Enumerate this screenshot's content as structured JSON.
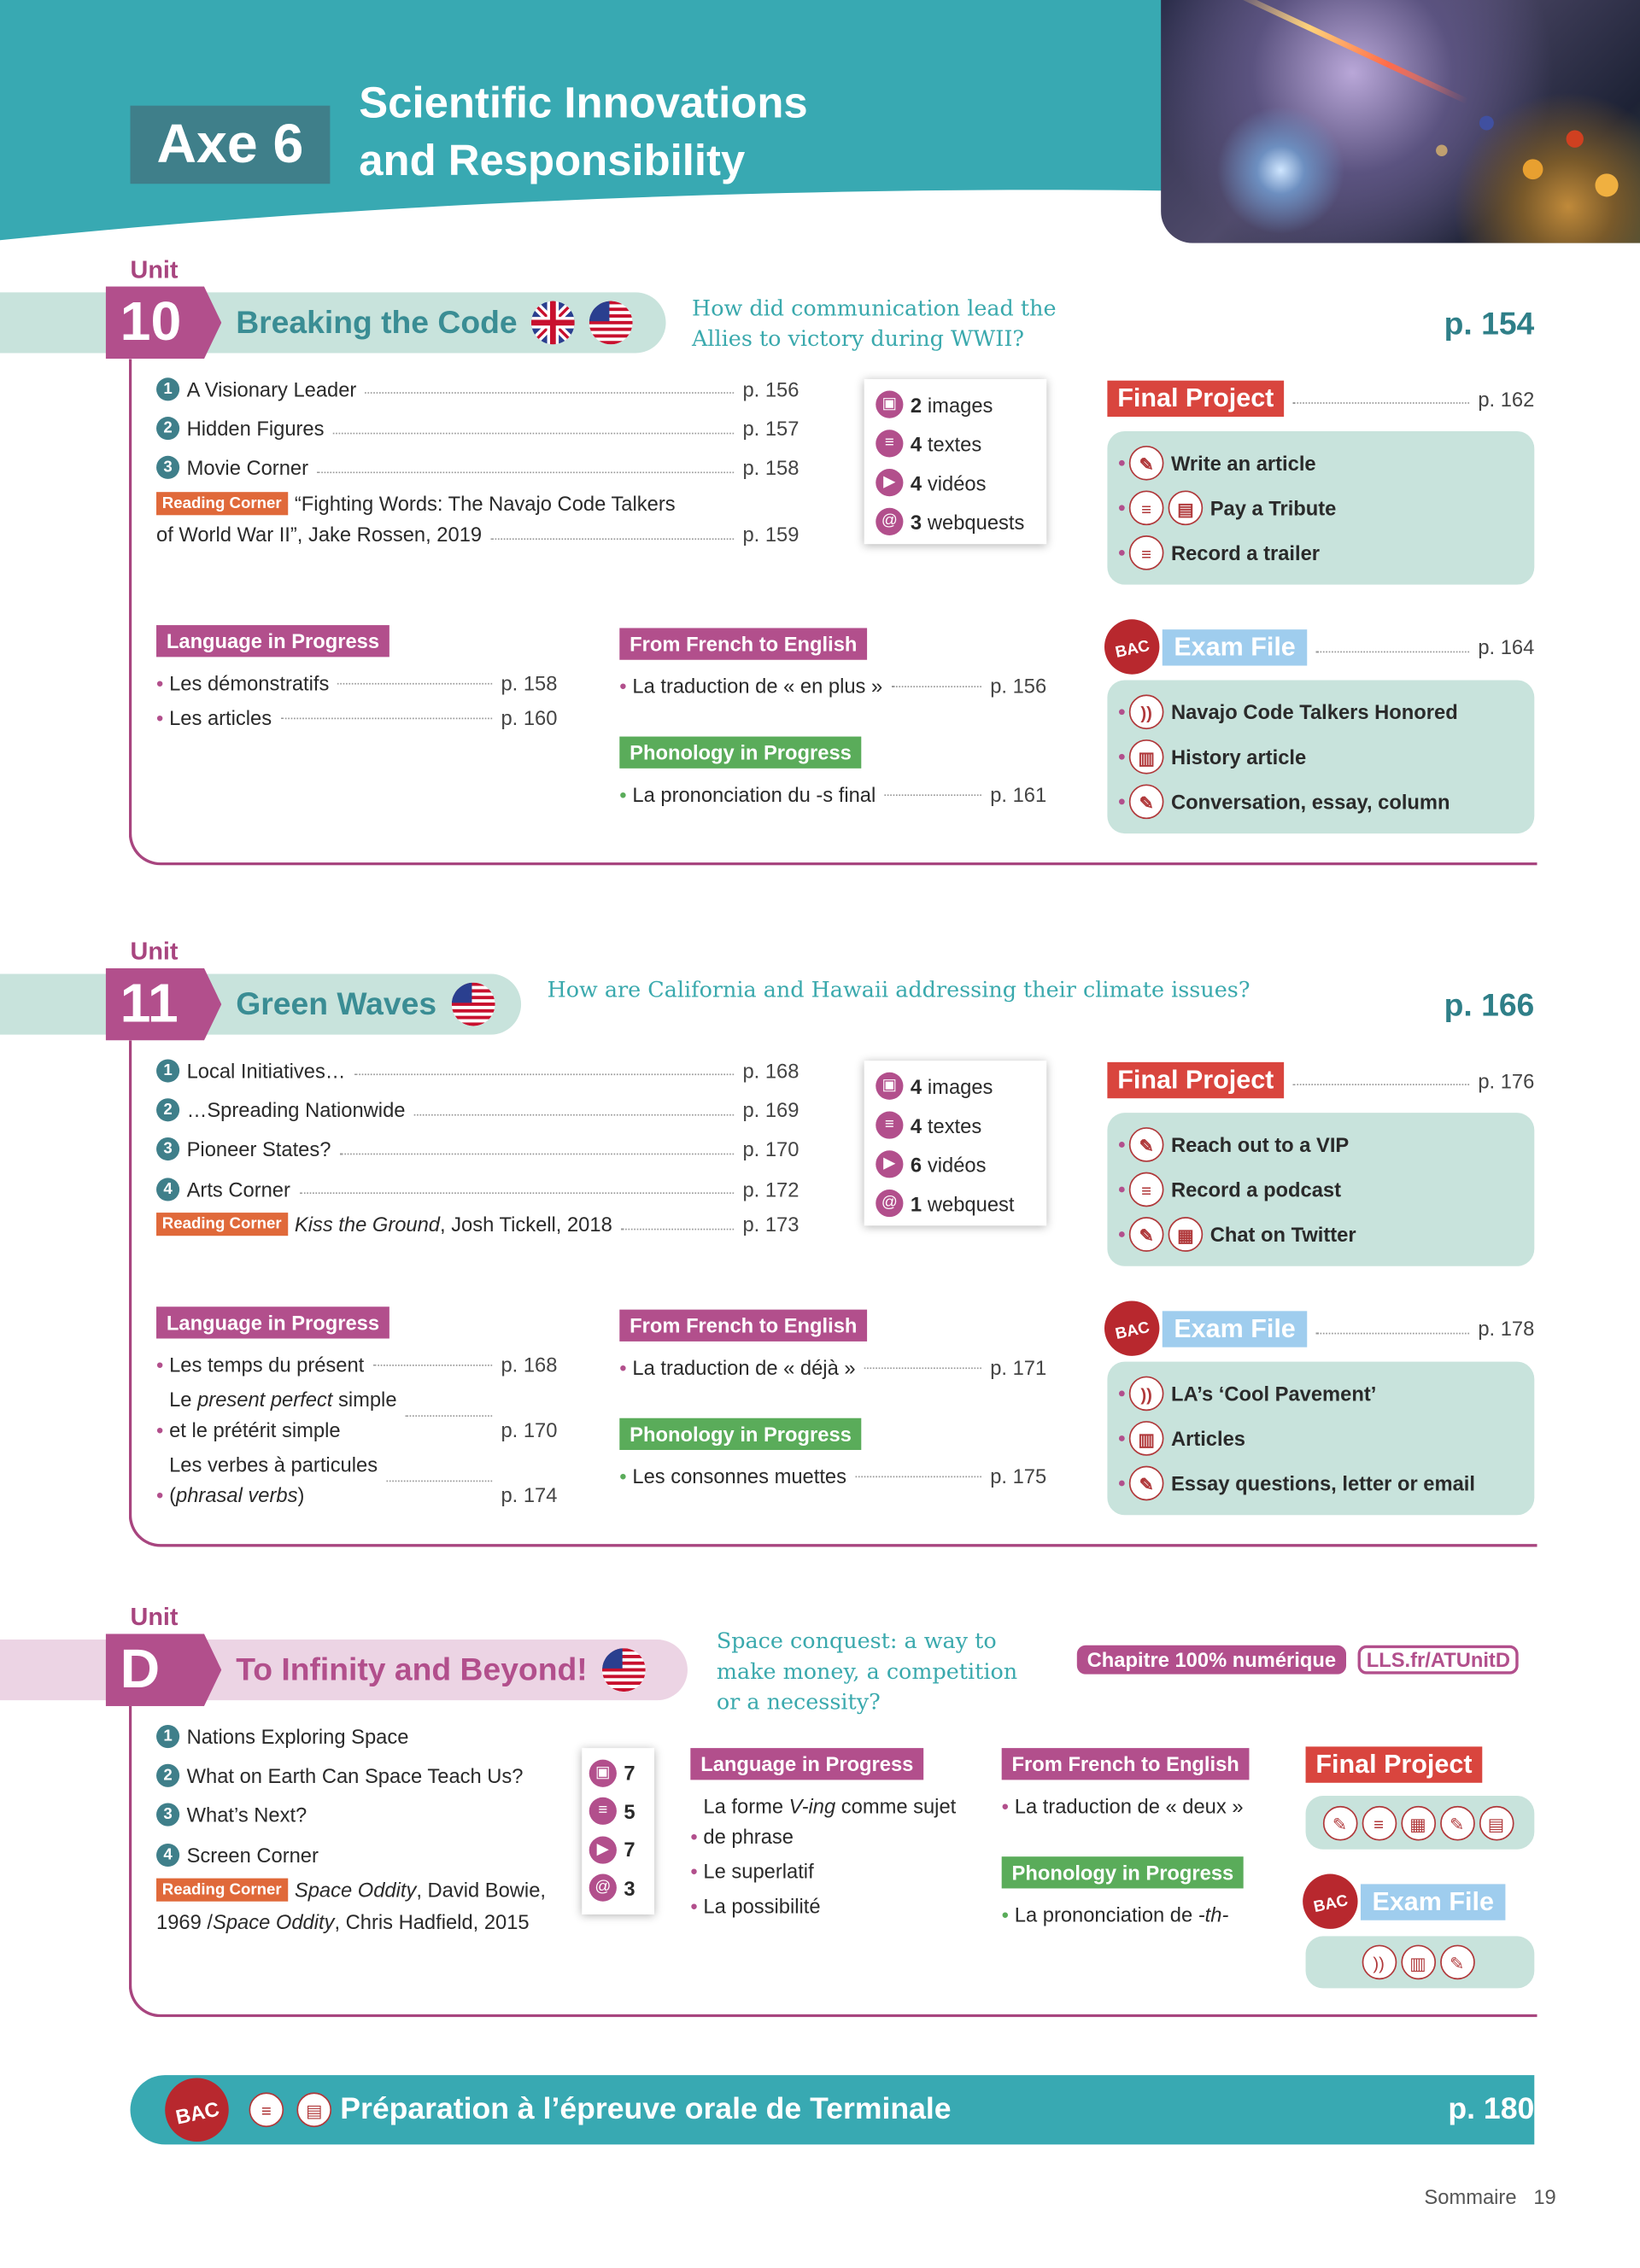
{
  "header": {
    "axe": "Axe 6",
    "title_line1": "Scientific Innovations",
    "title_line2": "and Responsibility",
    "colors": {
      "teal": "#38a9b2",
      "axe_box": "#3f7f8a",
      "purple": "#b24f8c",
      "red": "#d9453e",
      "green": "#5aac5a",
      "blue": "#9fcdee"
    }
  },
  "units": [
    {
      "unit_label": "Unit",
      "number": "10",
      "title": "Breaking the Code",
      "flags": [
        "uk-flag",
        "us-flag"
      ],
      "question": "How did communication lead the Allies to victory during WWII?",
      "page": "p. 154",
      "lessons": [
        {
          "num": "1",
          "title": "A Visionary Leader",
          "page": "p. 156"
        },
        {
          "num": "2",
          "title": "Hidden Figures",
          "page": "p. 157"
        },
        {
          "num": "3",
          "title": "Movie Corner",
          "page": "p. 158"
        }
      ],
      "reading_corner": {
        "label": "Reading Corner",
        "lines": [
          {
            "parts": [
              {
                "t": "“Fighting Words: The Navajo Code Talkers"
              }
            ]
          },
          {
            "parts": [
              {
                "t": "of World War II”, Jake Rossen, 2019"
              }
            ],
            "page": "p. 159"
          }
        ]
      },
      "media": [
        {
          "icon": "image-icon",
          "count": "2",
          "label": "images"
        },
        {
          "icon": "text-icon",
          "count": "4",
          "label": "textes"
        },
        {
          "icon": "video-icon",
          "count": "4",
          "label": "vidéos"
        },
        {
          "icon": "webquest-icon",
          "count": "3",
          "label": "webquests"
        }
      ],
      "final_project": {
        "label": "Final Project",
        "page": "p. 162",
        "items": [
          {
            "icons": [
              "writing-icon"
            ],
            "text": "Write an article"
          },
          {
            "icons": [
              "speech-icon",
              "speech-card-icon"
            ],
            "text": "Pay a Tribute"
          },
          {
            "icons": [
              "speech-icon"
            ],
            "text": "Record a trailer"
          }
        ]
      },
      "language": {
        "label": "Language in Progress",
        "items": [
          {
            "lines": [
              [
                {
                  "t": "Les démonstratifs"
                }
              ]
            ],
            "page": "p. 158"
          },
          {
            "lines": [
              [
                {
                  "t": "Les articles"
                }
              ]
            ],
            "page": "p. 160"
          }
        ]
      },
      "french": {
        "label": "From French to English",
        "items": [
          {
            "lines": [
              [
                {
                  "t": "La traduction de « en plus »"
                }
              ]
            ],
            "page": "p. 156"
          }
        ]
      },
      "phonology": {
        "label": "Phonology in Progress",
        "items": [
          {
            "lines": [
              [
                {
                  "t": "La prononciation du -s final"
                }
              ]
            ],
            "page": "p. 161"
          }
        ]
      },
      "exam": {
        "bac": "BAC",
        "label": "Exam File",
        "page": "p. 164",
        "items": [
          {
            "icons": [
              "listening-icon"
            ],
            "text": "Navajo Code Talkers Honored"
          },
          {
            "icons": [
              "reading-icon"
            ],
            "text": "History article"
          },
          {
            "icons": [
              "writing-icon"
            ],
            "text": "Conversation, essay, column"
          }
        ]
      }
    },
    {
      "unit_label": "Unit",
      "number": "11",
      "title": "Green Waves",
      "flags": [
        "us-flag"
      ],
      "question": "How are California and Hawaii addressing their climate issues?",
      "page": "p. 166",
      "lessons": [
        {
          "num": "1",
          "title": "Local Initiatives…",
          "page": "p. 168"
        },
        {
          "num": "2",
          "title": "…Spreading Nationwide",
          "page": "p. 169"
        },
        {
          "num": "3",
          "title": "Pioneer States?",
          "page": "p. 170"
        },
        {
          "num": "4",
          "title": "Arts Corner",
          "page": "p. 172"
        }
      ],
      "reading_corner": {
        "label": "Reading Corner",
        "lines": [
          {
            "parts": [
              {
                "t": "Kiss the Ground",
                "i": true
              },
              {
                "t": ", Josh Tickell, 2018"
              }
            ],
            "page": "p. 173"
          }
        ]
      },
      "media": [
        {
          "icon": "image-icon",
          "count": "4",
          "label": "images"
        },
        {
          "icon": "text-icon",
          "count": "4",
          "label": "textes"
        },
        {
          "icon": "video-icon",
          "count": "6",
          "label": "vidéos"
        },
        {
          "icon": "webquest-icon",
          "count": "1",
          "label": "webquest"
        }
      ],
      "final_project": {
        "label": "Final Project",
        "page": "p. 176",
        "items": [
          {
            "icons": [
              "writing-icon"
            ],
            "text": "Reach out to a VIP"
          },
          {
            "icons": [
              "speech-icon"
            ],
            "text": "Record a podcast"
          },
          {
            "icons": [
              "writing-icon",
              "chat-icon"
            ],
            "text": "Chat on Twitter"
          }
        ]
      },
      "language": {
        "label": "Language in Progress",
        "items": [
          {
            "lines": [
              [
                {
                  "t": "Les temps du présent"
                }
              ]
            ],
            "page": "p. 168"
          },
          {
            "lines": [
              [
                {
                  "t": "Le "
                },
                {
                  "t": "present perfect",
                  "i": true
                },
                {
                  "t": " simple"
                }
              ],
              [
                {
                  "t": "et le prétérit simple"
                }
              ]
            ],
            "page": "p. 170"
          },
          {
            "lines": [
              [
                {
                  "t": "Les verbes à particules"
                }
              ],
              [
                {
                  "t": "("
                },
                {
                  "t": "phrasal verbs",
                  "i": true
                },
                {
                  "t": ")"
                }
              ]
            ],
            "page": "p. 174"
          }
        ]
      },
      "french": {
        "label": "From French to English",
        "items": [
          {
            "lines": [
              [
                {
                  "t": "La traduction de « déjà »"
                }
              ]
            ],
            "page": "p. 171"
          }
        ]
      },
      "phonology": {
        "label": "Phonology in Progress",
        "items": [
          {
            "lines": [
              [
                {
                  "t": "Les consonnes muettes"
                }
              ]
            ],
            "page": "p. 175"
          }
        ]
      },
      "exam": {
        "bac": "BAC",
        "label": "Exam File",
        "page": "p. 178",
        "items": [
          {
            "icons": [
              "listening-icon"
            ],
            "text": "LA’s ‘Cool Pavement’"
          },
          {
            "icons": [
              "reading-icon"
            ],
            "text": "Articles"
          },
          {
            "icons": [
              "writing-icon"
            ],
            "text": "Essay questions, letter or email"
          }
        ]
      }
    },
    {
      "unit_label": "Unit",
      "number": "D",
      "title": "To Infinity and Beyond!",
      "flags": [
        "us-flag"
      ],
      "question_lines": [
        "Space conquest: a way to",
        "make money, a competition",
        "or a necessity?"
      ],
      "digital_badge": "Chapitre 100% numérique",
      "link": "LLS.fr/ATUnitD",
      "lessons": [
        {
          "num": "1",
          "title": "Nations Exploring Space"
        },
        {
          "num": "2",
          "title": "What on Earth Can Space Teach Us?"
        },
        {
          "num": "3",
          "title": "What’s Next?"
        },
        {
          "num": "4",
          "title": "Screen Corner"
        }
      ],
      "reading_corner": {
        "label": "Reading Corner",
        "lines": [
          {
            "parts": [
              {
                "t": "Space Oddity",
                "i": true
              },
              {
                "t": ", David Bowie,"
              }
            ]
          },
          {
            "parts": [
              {
                "t": "1969 / "
              },
              {
                "t": "Space Oddity",
                "i": true
              },
              {
                "t": ", Chris Hadfield, 2015"
              }
            ]
          }
        ]
      },
      "media": [
        {
          "icon": "image-icon",
          "count": "7"
        },
        {
          "icon": "text-icon",
          "count": "5"
        },
        {
          "icon": "video-icon",
          "count": "7"
        },
        {
          "icon": "webquest-icon",
          "count": "3"
        }
      ],
      "language": {
        "label": "Language in Progress",
        "items": [
          {
            "lines": [
              [
                {
                  "t": "La forme "
                },
                {
                  "t": "V-ing",
                  "i": true
                },
                {
                  "t": " comme sujet"
                }
              ],
              [
                {
                  "t": "de phrase"
                }
              ]
            ]
          },
          {
            "lines": [
              [
                {
                  "t": "Le superlatif"
                }
              ]
            ]
          },
          {
            "lines": [
              [
                {
                  "t": "La possibilité"
                }
              ]
            ]
          }
        ]
      },
      "french": {
        "label": "From French to English",
        "items": [
          {
            "lines": [
              [
                {
                  "t": "La traduction de « deux »"
                }
              ]
            ]
          }
        ]
      },
      "phonology": {
        "label": "Phonology in Progress",
        "items": [
          {
            "lines": [
              [
                {
                  "t": "La prononciation de "
                },
                {
                  "t": "-th-",
                  "i": true
                }
              ]
            ]
          }
        ]
      },
      "final_project": {
        "label": "Final Project",
        "icons": [
          "writing-icon",
          "speech-icon",
          "chat-icon",
          "writing-icon",
          "speech-card-icon"
        ]
      },
      "exam": {
        "bac": "BAC",
        "label": "Exam File",
        "icons": [
          "listening-icon",
          "reading-icon",
          "writing-icon"
        ]
      }
    }
  ],
  "footer": {
    "bac": "BAC",
    "icons": [
      "speech-icon",
      "speech-card-icon"
    ],
    "text": "Préparation à l’épreuve orale de Terminale",
    "page": "p. 180"
  },
  "page_footer": {
    "section": "Sommaire",
    "page_number": "19"
  }
}
